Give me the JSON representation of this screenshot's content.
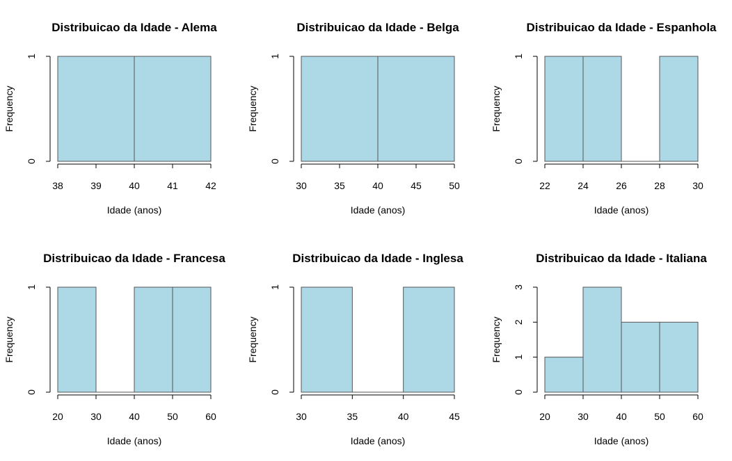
{
  "colors": {
    "bar_fill": "#add8e6",
    "bar_border": "#555555",
    "axis": "#000000",
    "background": "#ffffff"
  },
  "chart_data": [
    {
      "type": "bar",
      "title": "Distribuicao da Idade - Alema",
      "xlabel": "Idade (anos)",
      "ylabel": "Frequency",
      "bins": [
        38,
        40,
        42
      ],
      "counts": [
        1,
        1
      ],
      "xticks": [
        38,
        39,
        40,
        41,
        42
      ],
      "yticks": [
        0,
        1
      ],
      "xlim": [
        38,
        42
      ],
      "ylim": [
        0,
        1
      ]
    },
    {
      "type": "bar",
      "title": "Distribuicao da Idade - Belga",
      "xlabel": "Idade (anos)",
      "ylabel": "Frequency",
      "bins": [
        30,
        40,
        50
      ],
      "counts": [
        1,
        1
      ],
      "xticks": [
        30,
        35,
        40,
        45,
        50
      ],
      "yticks": [
        0,
        1
      ],
      "xlim": [
        30,
        50
      ],
      "ylim": [
        0,
        1
      ]
    },
    {
      "type": "bar",
      "title": "Distribuicao da Idade - Espanhola",
      "xlabel": "Idade (anos)",
      "ylabel": "Frequency",
      "bins": [
        22,
        24,
        26,
        28,
        30
      ],
      "counts": [
        1,
        1,
        0,
        1
      ],
      "xticks": [
        22,
        24,
        26,
        28,
        30
      ],
      "yticks": [
        0,
        1
      ],
      "xlim": [
        22,
        30
      ],
      "ylim": [
        0,
        1
      ]
    },
    {
      "type": "bar",
      "title": "Distribuicao da Idade - Francesa",
      "xlabel": "Idade (anos)",
      "ylabel": "Frequency",
      "bins": [
        20,
        30,
        40,
        50,
        60
      ],
      "counts": [
        1,
        0,
        1,
        1
      ],
      "xticks": [
        20,
        30,
        40,
        50,
        60
      ],
      "yticks": [
        0,
        1
      ],
      "xlim": [
        20,
        60
      ],
      "ylim": [
        0,
        1
      ]
    },
    {
      "type": "bar",
      "title": "Distribuicao da Idade - Inglesa",
      "xlabel": "Idade (anos)",
      "ylabel": "Frequency",
      "bins": [
        30,
        35,
        40,
        45
      ],
      "counts": [
        1,
        0,
        1
      ],
      "xticks": [
        30,
        35,
        40,
        45
      ],
      "yticks": [
        0,
        1
      ],
      "xlim": [
        30,
        45
      ],
      "ylim": [
        0,
        1
      ]
    },
    {
      "type": "bar",
      "title": "Distribuicao da Idade - Italiana",
      "xlabel": "Idade (anos)",
      "ylabel": "Frequency",
      "bins": [
        20,
        30,
        40,
        50,
        60
      ],
      "counts": [
        1,
        3,
        2,
        2
      ],
      "xticks": [
        20,
        30,
        40,
        50,
        60
      ],
      "yticks": [
        0,
        1,
        2,
        3
      ],
      "xlim": [
        20,
        60
      ],
      "ylim": [
        0,
        3
      ]
    }
  ]
}
